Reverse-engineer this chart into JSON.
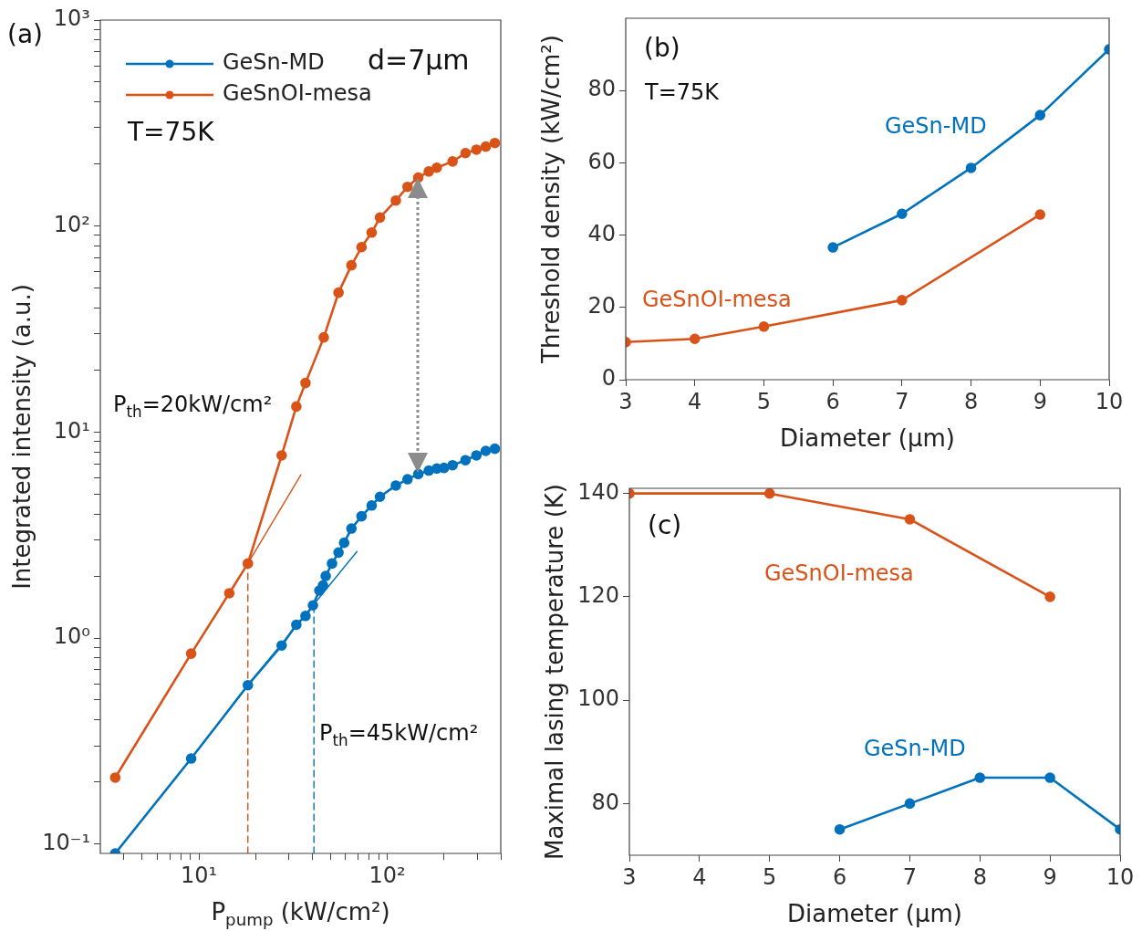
{
  "chart_data": [
    {
      "type": "line",
      "xlabel": "P$_{pump}$ (kW/cm²)",
      "ylabel": "Integrated intensity (a.u.)",
      "log": "xy",
      "xlim": [
        3,
        400
      ],
      "ylim": [
        0.09,
        1000
      ],
      "legend": "top left",
      "marker": "circle",
      "xticks": [
        {
          "value": 4,
          "label": null
        },
        {
          "value": 5,
          "label": null
        },
        {
          "value": 6,
          "label": null
        },
        {
          "value": 7,
          "label": null
        },
        {
          "value": 8,
          "label": null
        },
        {
          "value": 9,
          "label": null
        },
        {
          "value": 10,
          "label": "10¹"
        },
        {
          "value": 20,
          "label": null
        },
        {
          "value": 30,
          "label": null
        },
        {
          "value": 40,
          "label": null
        },
        {
          "value": 50,
          "label": null
        },
        {
          "value": 60,
          "label": null
        },
        {
          "value": 70,
          "label": null
        },
        {
          "value": 80,
          "label": null
        },
        {
          "value": 90,
          "label": null
        },
        {
          "value": 100,
          "label": "10²"
        },
        {
          "value": 200,
          "label": null
        },
        {
          "value": 300,
          "label": null
        },
        {
          "value": 400,
          "label": null
        }
      ],
      "yticks": [
        {
          "value": 0.1,
          "label": "10⁻¹"
        },
        {
          "value": 0.2,
          "label": null
        },
        {
          "value": 0.3,
          "label": null
        },
        {
          "value": 0.4,
          "label": null
        },
        {
          "value": 0.5,
          "label": null
        },
        {
          "value": 0.6,
          "label": null
        },
        {
          "value": 0.7,
          "label": null
        },
        {
          "value": 0.8,
          "label": null
        },
        {
          "value": 0.9,
          "label": null
        },
        {
          "value": 1,
          "label": "10⁰"
        },
        {
          "value": 2,
          "label": null
        },
        {
          "value": 3,
          "label": null
        },
        {
          "value": 4,
          "label": null
        },
        {
          "value": 5,
          "label": null
        },
        {
          "value": 6,
          "label": null
        },
        {
          "value": 7,
          "label": null
        },
        {
          "value": 8,
          "label": null
        },
        {
          "value": 9,
          "label": null
        },
        {
          "value": 10,
          "label": "10¹"
        },
        {
          "value": 20,
          "label": null
        },
        {
          "value": 30,
          "label": null
        },
        {
          "value": 40,
          "label": null
        },
        {
          "value": 50,
          "label": null
        },
        {
          "value": 60,
          "label": null
        },
        {
          "value": 70,
          "label": null
        },
        {
          "value": 80,
          "label": null
        },
        {
          "value": 90,
          "label": null
        },
        {
          "value": 100,
          "label": "10²"
        },
        {
          "value": 200,
          "label": null
        },
        {
          "value": 300,
          "label": null
        },
        {
          "value": 400,
          "label": null
        },
        {
          "value": 500,
          "label": null
        },
        {
          "value": 600,
          "label": null
        },
        {
          "value": 700,
          "label": null
        },
        {
          "value": 800,
          "label": null
        },
        {
          "value": 900,
          "label": null
        },
        {
          "value": 1000,
          "label": "10³"
        }
      ],
      "annotations": [
        "(a)",
        "d=7μm",
        "T=75K",
        "P$_{th}$=20kW/cm²",
        "P$_{th}$=45kW/cm²"
      ],
      "series": [
        {
          "name": "GeSn-MD",
          "color": "#0072bd",
          "x": [
            3.6,
            9.1,
            18.2,
            27.5,
            32.9,
            36.8,
            40.3,
            43.6,
            45.6,
            47.1,
            50.9,
            55.1,
            59,
            64.5,
            73,
            82.6,
            91.4,
            111,
            128,
            146,
            166,
            183,
            200,
            222,
            260,
            297,
            333,
            372
          ],
          "values": [
            0.09,
            0.26,
            0.59,
            0.92,
            1.16,
            1.28,
            1.44,
            1.7,
            1.8,
            2.0,
            2.3,
            2.6,
            2.9,
            3.4,
            3.9,
            4.4,
            4.85,
            5.5,
            5.9,
            6.25,
            6.5,
            6.65,
            6.7,
            6.9,
            7.3,
            7.7,
            8.1,
            8.3
          ]
        },
        {
          "name": "GeSnOI-mesa",
          "color": "#d95319",
          "x": [
            3.6,
            9.1,
            14.5,
            18.2,
            27.5,
            32.9,
            36.8,
            46,
            55.1,
            64.5,
            73,
            82.6,
            91.4,
            111,
            128,
            146,
            166,
            183,
            222,
            260,
            297,
            333,
            372
          ],
          "values": [
            0.21,
            0.84,
            1.65,
            2.3,
            7.7,
            13.3,
            17.3,
            28.8,
            47.5,
            64.5,
            79,
            93,
            110,
            133,
            155,
            172,
            184,
            192,
            206,
            226,
            235,
            243,
            253
          ]
        },
        {
          "type": "line",
          "color": "#d95319",
          "marker": "none",
          "x": [
            18.2,
            34.8
          ],
          "values": [
            2.3,
            6.2
          ]
        },
        {
          "type": "line",
          "color": "#0072bd",
          "marker": "none",
          "x": [
            18.2,
            69
          ],
          "values": [
            0.59,
            2.63
          ]
        },
        {
          "type": "line",
          "color": "#d95319",
          "marker": "none",
          "line_style": "dashed",
          "x": [
            18.2,
            18.2
          ],
          "values": [
            0.09,
            2.3
          ]
        },
        {
          "type": "line",
          "color": "#0072bd",
          "marker": "none",
          "line_style": "dashed",
          "x": [
            40.8,
            40.8
          ],
          "values": [
            0.09,
            1.44
          ]
        }
      ]
    },
    {
      "type": "line",
      "xlabel": "Diameter (μm)",
      "ylabel": "Threshold density (kW/cm²)",
      "xlim": [
        3,
        10
      ],
      "ylim": [
        0,
        100
      ],
      "xticks": [
        3,
        4,
        5,
        6,
        7,
        8,
        9,
        10
      ],
      "yticks": [
        0,
        20,
        40,
        60,
        80
      ],
      "marker": "circle",
      "annotations": [
        "(b)",
        "T=75K"
      ],
      "series": [
        {
          "name": "GeSn-MD",
          "color": "#0072bd",
          "x": [
            6,
            7,
            8,
            9,
            10
          ],
          "values": [
            36.6,
            45.9,
            58.6,
            73.2,
            91.4
          ]
        },
        {
          "name": "GeSnOI-mesa",
          "color": "#d95319",
          "x": [
            3,
            4,
            5,
            7,
            9
          ],
          "values": [
            10.4,
            11.3,
            14.7,
            22.0,
            45.7
          ]
        }
      ]
    },
    {
      "type": "line",
      "xlabel": "Diameter (μm)",
      "ylabel": "Maximal lasing temperature (K)",
      "xlim": [
        3,
        10
      ],
      "ylim": [
        70,
        141
      ],
      "xticks": [
        3,
        4,
        5,
        6,
        7,
        8,
        9,
        10
      ],
      "yticks": [
        80,
        100,
        120,
        140
      ],
      "marker": "circle",
      "annotations": [
        "(c)"
      ],
      "series": [
        {
          "name": "GeSn-MD",
          "color": "#0072bd",
          "x": [
            6,
            7,
            8,
            9,
            10
          ],
          "values": [
            75,
            80,
            85,
            85,
            75
          ]
        },
        {
          "name": "GeSnOI-mesa",
          "color": "#d95319",
          "x": [
            3,
            5,
            7,
            9
          ],
          "values": [
            140,
            140,
            135,
            120
          ]
        }
      ]
    }
  ]
}
